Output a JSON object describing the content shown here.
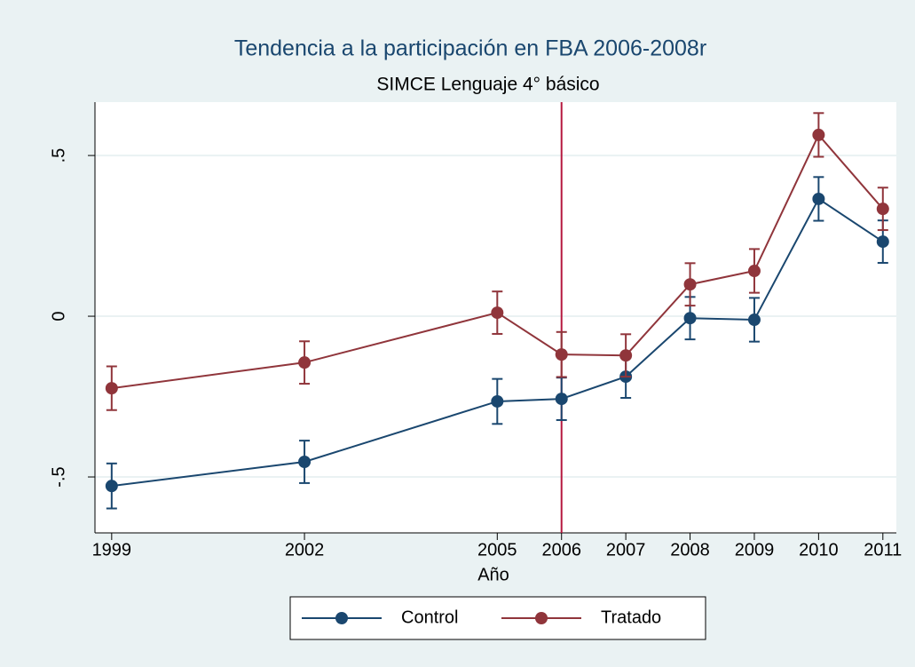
{
  "chart_data": {
    "type": "line",
    "title": "Tendencia a la participación en FBA 2006-2008r",
    "subtitle": "SIMCE Lenguaje 4° básico",
    "x_label": "Año",
    "x": [
      1999,
      2002,
      2005,
      2006,
      2007,
      2008,
      2009,
      2010,
      2011
    ],
    "series": [
      {
        "name": "Control",
        "color": "#1a476f",
        "values": [
          -0.528,
          -0.453,
          -0.265,
          -0.257,
          -0.188,
          -0.006,
          -0.011,
          0.365,
          0.232
        ],
        "errors": [
          0.07,
          0.066,
          0.07,
          0.066,
          0.066,
          0.066,
          0.068,
          0.068,
          0.066
        ]
      },
      {
        "name": "Tratado",
        "color": "#90353b",
        "values": [
          -0.224,
          -0.144,
          0.011,
          -0.119,
          -0.122,
          0.099,
          0.141,
          0.564,
          0.334
        ],
        "errors": [
          0.068,
          0.066,
          0.066,
          0.07,
          0.066,
          0.066,
          0.068,
          0.068,
          0.066
        ]
      }
    ],
    "vline": {
      "x": 2006,
      "color": "#b5193f"
    },
    "xlim": [
      1998.74,
      2011.21
    ],
    "ylim": [
      -0.674,
      0.666
    ],
    "xticks": [
      1999,
      2002,
      2005,
      2006,
      2007,
      2008,
      2009,
      2010,
      2011
    ],
    "yticks": [
      {
        "value": -0.5,
        "label": "-.5"
      },
      0,
      {
        "value": 0.5,
        "label": ".5"
      }
    ],
    "grid": true,
    "legend": "bottom"
  }
}
